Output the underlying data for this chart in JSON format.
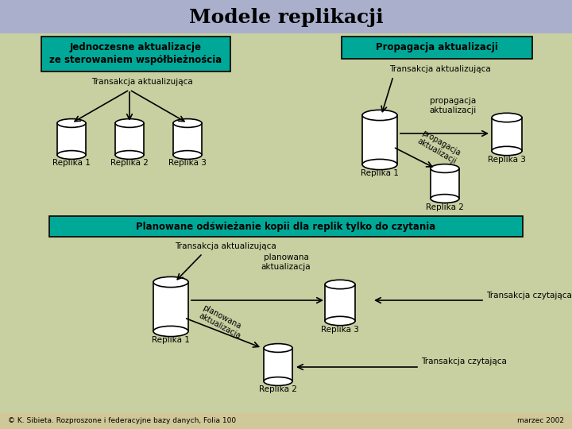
{
  "title": "Modele replikacji",
  "title_fontsize": 18,
  "bg_top": "#aab0cc",
  "bg_main": "#c8cfa0",
  "bg_bottom": "#d0c898",
  "teal_color": "#00a898",
  "box1_label": "Jednoczesne aktualizacje\nze sterowaniem współbieżnościa",
  "box2_label": "Propagacja aktualizacji",
  "box3_label": "Planowane odświeżanie kopii dla replik tylko do czytania",
  "footer_left": "© K. Sibieta. Rozproszone i federacyjne bazy danych, Folia 100",
  "footer_right": "marzec 2002",
  "trans_akt": "Transakcja aktualizująca",
  "prop_akt": "propagacja\naktualizacji",
  "prop_akt_diag": "propagacja\naktualizacji",
  "plan_akt": "planowana\naktualizacja",
  "plan_akt_diag": "planowana\naktualizacja",
  "trans_czyt": "Transakcja czytająca",
  "rep1": "Replika 1",
  "rep2": "Replika 2",
  "rep3": "Replika 3"
}
